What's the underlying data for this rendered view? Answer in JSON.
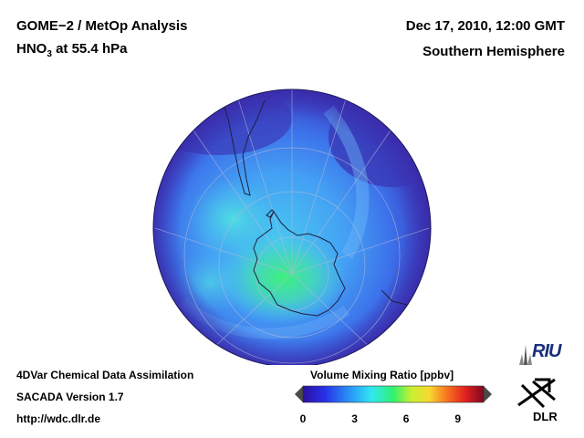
{
  "header": {
    "title_line1": "GOME−2 / MetOp Analysis",
    "title_species": "HNO",
    "title_subscript": "3",
    "title_level": " at 55.4 hPa",
    "date": "Dec 17, 2010, 12:00 GMT",
    "hemisphere": "Southern Hemisphere"
  },
  "footer": {
    "line1": "4DVar Chemical Data Assimilation",
    "line2": "SACADA Version 1.7",
    "line3": "http://wdc.dlr.de"
  },
  "colorbar": {
    "title": "Volume Mixing Ratio [ppbv]",
    "ticks": [
      "0",
      "3",
      "6",
      "9"
    ],
    "range": [
      0,
      10.5
    ]
  },
  "logos": {
    "riu": "RIU",
    "dlr": "DLR"
  },
  "colors": {
    "ocean_deep": "#3a2bb0",
    "mid_blue": "#3c6cf0",
    "light_blue": "#4aa8f8",
    "cyan": "#48d8e8",
    "green": "#3ee878"
  }
}
